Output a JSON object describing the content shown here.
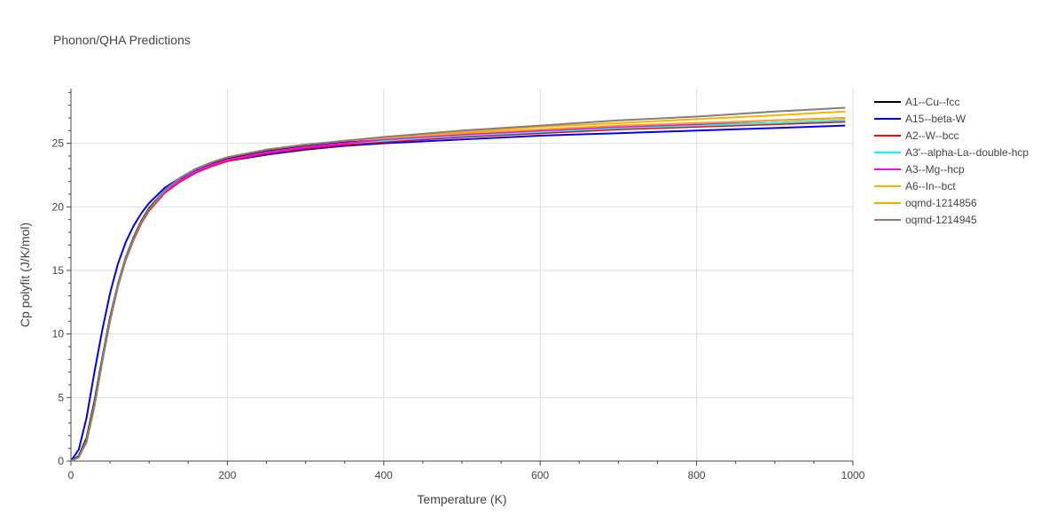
{
  "chart_data": {
    "type": "line",
    "title": "Phonon/QHA Predictions",
    "xlabel": "Temperature (K)",
    "ylabel": "Cp polyfit (J/K/mol)",
    "xlim": [
      0,
      1000
    ],
    "ylim": [
      0,
      29.3
    ],
    "xticks": [
      0,
      200,
      400,
      600,
      800,
      1000
    ],
    "yticks": [
      0,
      5,
      10,
      15,
      20,
      25
    ],
    "grid": true,
    "legend_position": "right",
    "series": [
      {
        "name": "A1--Cu--fcc",
        "color": "#000000",
        "x": [
          0,
          10,
          20,
          30,
          40,
          50,
          60,
          70,
          80,
          90,
          100,
          120,
          140,
          160,
          180,
          200,
          250,
          300,
          350,
          400,
          500,
          600,
          700,
          800,
          900,
          990
        ],
        "y": [
          0,
          0.4,
          1.8,
          4.7,
          8.1,
          11.3,
          13.9,
          16.0,
          17.6,
          18.9,
          19.9,
          21.3,
          22.2,
          22.9,
          23.4,
          23.8,
          24.4,
          24.8,
          25.1,
          25.3,
          25.7,
          26.0,
          26.2,
          26.4,
          26.6,
          26.8
        ]
      },
      {
        "name": "A15--beta-W",
        "color": "#0000ff",
        "x": [
          0,
          10,
          20,
          30,
          40,
          50,
          60,
          70,
          80,
          90,
          100,
          120,
          140,
          160,
          180,
          200,
          250,
          300,
          350,
          400,
          500,
          600,
          700,
          800,
          900,
          990
        ],
        "y": [
          0,
          0.9,
          3.4,
          7.0,
          10.3,
          13.2,
          15.5,
          17.2,
          18.5,
          19.5,
          20.3,
          21.5,
          22.3,
          22.9,
          23.3,
          23.6,
          24.1,
          24.5,
          24.8,
          25.0,
          25.3,
          25.6,
          25.8,
          26.0,
          26.2,
          26.4
        ]
      },
      {
        "name": "A2--W--bcc",
        "color": "#ff0000",
        "x": [
          0,
          10,
          20,
          30,
          40,
          50,
          60,
          70,
          80,
          90,
          100,
          120,
          140,
          160,
          180,
          200,
          250,
          300,
          350,
          400,
          500,
          600,
          700,
          800,
          900,
          990
        ],
        "y": [
          0,
          0.3,
          1.5,
          4.3,
          7.8,
          11.0,
          13.7,
          15.8,
          17.4,
          18.7,
          19.7,
          21.1,
          22.0,
          22.7,
          23.2,
          23.6,
          24.2,
          24.6,
          24.9,
          25.1,
          25.5,
          25.8,
          26.1,
          26.3,
          26.5,
          26.7
        ]
      },
      {
        "name": "A3'--alpha-La--double-hcp",
        "color": "#00ffff",
        "x": [
          0,
          10,
          20,
          30,
          40,
          50,
          60,
          70,
          80,
          90,
          100,
          120,
          140,
          160,
          180,
          200,
          250,
          300,
          350,
          400,
          500,
          600,
          700,
          800,
          900,
          990
        ],
        "y": [
          0,
          0.3,
          1.6,
          4.4,
          7.9,
          11.1,
          13.8,
          15.9,
          17.5,
          18.8,
          19.8,
          21.2,
          22.1,
          22.8,
          23.3,
          23.7,
          24.3,
          24.7,
          25.0,
          25.2,
          25.6,
          25.9,
          26.2,
          26.4,
          26.6,
          26.8
        ]
      },
      {
        "name": "A3--Mg--hcp",
        "color": "#ff00ff",
        "x": [
          0,
          10,
          20,
          30,
          40,
          50,
          60,
          70,
          80,
          90,
          100,
          120,
          140,
          160,
          180,
          200,
          250,
          300,
          350,
          400,
          500,
          600,
          700,
          800,
          900,
          990
        ],
        "y": [
          0,
          0.3,
          1.6,
          4.4,
          7.9,
          11.1,
          13.8,
          15.9,
          17.5,
          18.8,
          19.8,
          21.2,
          22.1,
          22.8,
          23.3,
          23.7,
          24.3,
          24.7,
          25.0,
          25.3,
          25.7,
          26.0,
          26.3,
          26.5,
          26.8,
          27.0
        ]
      },
      {
        "name": "A6--In--bct",
        "color": "#ffb000",
        "x": [
          0,
          10,
          20,
          30,
          40,
          50,
          60,
          70,
          80,
          90,
          100,
          120,
          140,
          160,
          180,
          200,
          250,
          300,
          350,
          400,
          500,
          600,
          700,
          800,
          900,
          990
        ],
        "y": [
          0,
          0.3,
          1.6,
          4.4,
          7.9,
          11.1,
          13.8,
          15.9,
          17.5,
          18.8,
          19.8,
          21.3,
          22.3,
          23.0,
          23.5,
          23.9,
          24.5,
          24.9,
          25.2,
          25.4,
          25.9,
          26.3,
          26.6,
          26.9,
          27.2,
          27.5
        ]
      },
      {
        "name": "oqmd-1214856",
        "color": "#ffa500",
        "x": [
          0,
          10,
          20,
          30,
          40,
          50,
          60,
          70,
          80,
          90,
          100,
          120,
          140,
          160,
          180,
          200,
          250,
          300,
          350,
          400,
          500,
          600,
          700,
          800,
          900,
          990
        ],
        "y": [
          0,
          0.3,
          1.6,
          4.4,
          7.9,
          11.1,
          13.8,
          15.9,
          17.5,
          18.8,
          19.8,
          21.3,
          22.3,
          23.0,
          23.5,
          23.9,
          24.5,
          24.9,
          25.2,
          25.4,
          25.8,
          26.1,
          26.4,
          26.6,
          26.8,
          27.0
        ]
      },
      {
        "name": "oqmd-1214945",
        "color": "#808080",
        "x": [
          0,
          10,
          20,
          30,
          40,
          50,
          60,
          70,
          80,
          90,
          100,
          120,
          140,
          160,
          180,
          200,
          250,
          300,
          350,
          400,
          500,
          600,
          700,
          800,
          900,
          990
        ],
        "y": [
          0,
          0.3,
          1.6,
          4.4,
          7.9,
          11.1,
          13.8,
          15.9,
          17.5,
          18.8,
          19.8,
          21.3,
          22.3,
          23.0,
          23.5,
          23.9,
          24.5,
          24.9,
          25.2,
          25.5,
          26.0,
          26.4,
          26.8,
          27.1,
          27.5,
          27.8
        ]
      }
    ]
  }
}
